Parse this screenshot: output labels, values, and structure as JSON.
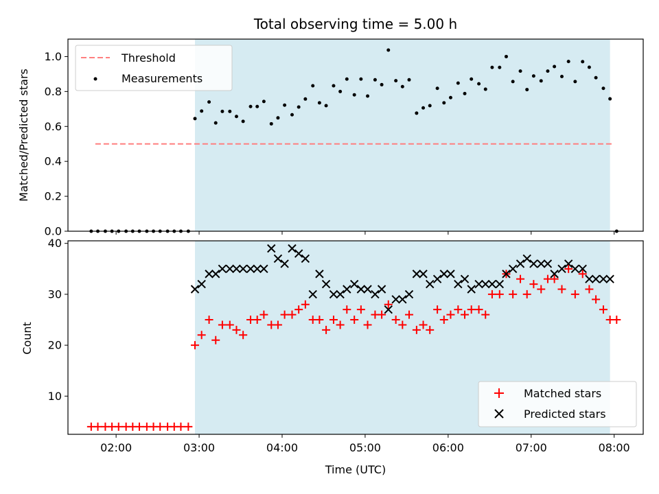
{
  "chart_data": {
    "type": "scatter",
    "title": "Total observing time = 5.00 h",
    "xlabel": "Time (UTC)",
    "x_ticks": [
      "02:00",
      "03:00",
      "04:00",
      "05:00",
      "06:00",
      "07:00",
      "08:00"
    ],
    "x_tick_hours": [
      2,
      3,
      4,
      5,
      6,
      7,
      8
    ],
    "xlim_hours": [
      1.42,
      8.35
    ],
    "observing_window_hours": [
      2.95,
      7.95
    ],
    "observing_window_color": "#add8e6",
    "grid": false,
    "panels": [
      {
        "ylabel": "Matched/Predicted stars",
        "ylim": [
          0,
          1.1
        ],
        "y_ticks": [
          "0.0",
          "0.2",
          "0.4",
          "0.6",
          "0.8",
          "1.0"
        ],
        "y_tick_values": [
          0,
          0.2,
          0.4,
          0.6,
          0.8,
          1.0
        ],
        "legend_position": "upper left",
        "series": [
          {
            "name": "Threshold",
            "kind": "dashed-line",
            "color": "#ff7f7f",
            "x": [
              1.75,
              8.0
            ],
            "y": [
              0.5,
              0.5
            ]
          },
          {
            "name": "Measurements",
            "kind": "dot",
            "color": "#000000",
            "x": [
              1.7,
              1.78,
              1.87,
              1.95,
              2.03,
              2.12,
              2.2,
              2.28,
              2.37,
              2.45,
              2.53,
              2.62,
              2.7,
              2.78,
              2.87,
              2.95,
              3.03,
              3.12,
              3.2,
              3.28,
              3.37,
              3.45,
              3.53,
              3.62,
              3.7,
              3.78,
              3.87,
              3.95,
              4.03,
              4.12,
              4.2,
              4.28,
              4.37,
              4.45,
              4.53,
              4.62,
              4.7,
              4.78,
              4.87,
              4.95,
              5.03,
              5.12,
              5.2,
              5.28,
              5.37,
              5.45,
              5.53,
              5.62,
              5.7,
              5.78,
              5.87,
              5.95,
              6.03,
              6.12,
              6.2,
              6.28,
              6.37,
              6.45,
              6.53,
              6.62,
              6.7,
              6.78,
              6.87,
              6.95,
              7.03,
              7.12,
              7.2,
              7.28,
              7.37,
              7.45,
              7.53,
              7.62,
              7.7,
              7.78,
              7.87,
              7.95,
              8.03
            ],
            "y": [
              0,
              0,
              0,
              0,
              0,
              0,
              0,
              0,
              0,
              0,
              0,
              0,
              0,
              0,
              0,
              0.645,
              0.688,
              0.74,
              0.62,
              0.686,
              0.686,
              0.657,
              0.629,
              0.714,
              0.714,
              0.743,
              0.615,
              0.649,
              0.722,
              0.667,
              0.711,
              0.757,
              0.833,
              0.735,
              0.719,
              0.833,
              0.8,
              0.871,
              0.781,
              0.871,
              0.774,
              0.867,
              0.839,
              1.037,
              0.862,
              0.828,
              0.867,
              0.676,
              0.706,
              0.719,
              0.818,
              0.735,
              0.765,
              0.848,
              0.788,
              0.871,
              0.844,
              0.813,
              0.938,
              0.938,
              1.0,
              0.857,
              0.917,
              0.811,
              0.889,
              0.861,
              0.917,
              0.943,
              0.886,
              0.972,
              0.857,
              0.971,
              0.939,
              0.879,
              0.818,
              0.758,
              0
            ]
          }
        ]
      },
      {
        "ylabel": "Count",
        "ylim": [
          2.5,
          40.5
        ],
        "y_ticks": [
          "10",
          "20",
          "30",
          "40"
        ],
        "y_tick_values": [
          10,
          20,
          30,
          40
        ],
        "legend_position": "lower right",
        "series": [
          {
            "name": "Matched stars",
            "kind": "plus",
            "color": "#ff0000",
            "x": [
              1.7,
              1.78,
              1.87,
              1.95,
              2.03,
              2.12,
              2.2,
              2.28,
              2.37,
              2.45,
              2.53,
              2.62,
              2.7,
              2.78,
              2.87,
              2.95,
              3.03,
              3.12,
              3.2,
              3.28,
              3.37,
              3.45,
              3.53,
              3.62,
              3.7,
              3.78,
              3.87,
              3.95,
              4.03,
              4.12,
              4.2,
              4.28,
              4.37,
              4.45,
              4.53,
              4.62,
              4.7,
              4.78,
              4.87,
              4.95,
              5.03,
              5.12,
              5.2,
              5.28,
              5.37,
              5.45,
              5.53,
              5.62,
              5.7,
              5.78,
              5.87,
              5.95,
              6.03,
              6.12,
              6.2,
              6.28,
              6.37,
              6.45,
              6.53,
              6.62,
              6.7,
              6.78,
              6.87,
              6.95,
              7.03,
              7.12,
              7.2,
              7.28,
              7.37,
              7.45,
              7.53,
              7.62,
              7.7,
              7.78,
              7.87,
              7.95,
              8.03
            ],
            "y": [
              4,
              4,
              4,
              4,
              4,
              4,
              4,
              4,
              4,
              4,
              4,
              4,
              4,
              4,
              4,
              20,
              22,
              25,
              21,
              24,
              24,
              23,
              22,
              25,
              25,
              26,
              24,
              24,
              26,
              26,
              27,
              28,
              25,
              25,
              23,
              25,
              24,
              27,
              25,
              27,
              24,
              26,
              26,
              28,
              25,
              24,
              26,
              23,
              24,
              23,
              27,
              25,
              26,
              27,
              26,
              27,
              27,
              26,
              30,
              30,
              34,
              30,
              33,
              30,
              32,
              31,
              33,
              33,
              31,
              35,
              30,
              34,
              31,
              29,
              27,
              25,
              25
            ]
          },
          {
            "name": "Predicted stars",
            "kind": "cross",
            "color": "#000000",
            "x": [
              2.95,
              3.03,
              3.12,
              3.2,
              3.28,
              3.37,
              3.45,
              3.53,
              3.62,
              3.7,
              3.78,
              3.87,
              3.95,
              4.03,
              4.12,
              4.2,
              4.28,
              4.37,
              4.45,
              4.53,
              4.62,
              4.7,
              4.78,
              4.87,
              4.95,
              5.03,
              5.12,
              5.2,
              5.28,
              5.37,
              5.45,
              5.53,
              5.62,
              5.7,
              5.78,
              5.87,
              5.95,
              6.03,
              6.12,
              6.2,
              6.28,
              6.37,
              6.45,
              6.53,
              6.62,
              6.7,
              6.78,
              6.87,
              6.95,
              7.03,
              7.12,
              7.2,
              7.28,
              7.37,
              7.45,
              7.53,
              7.62,
              7.7,
              7.78,
              7.87,
              7.95
            ],
            "y": [
              31,
              32,
              34,
              34,
              35,
              35,
              35,
              35,
              35,
              35,
              35,
              39,
              37,
              36,
              39,
              38,
              37,
              30,
              34,
              32,
              30,
              30,
              31,
              32,
              31,
              31,
              30,
              31,
              27,
              29,
              29,
              30,
              34,
              34,
              32,
              33,
              34,
              34,
              32,
              33,
              31,
              32,
              32,
              32,
              32,
              34,
              35,
              36,
              37,
              36,
              36,
              36,
              34,
              35,
              36,
              35,
              35,
              33,
              33,
              33,
              33
            ]
          }
        ]
      }
    ]
  }
}
